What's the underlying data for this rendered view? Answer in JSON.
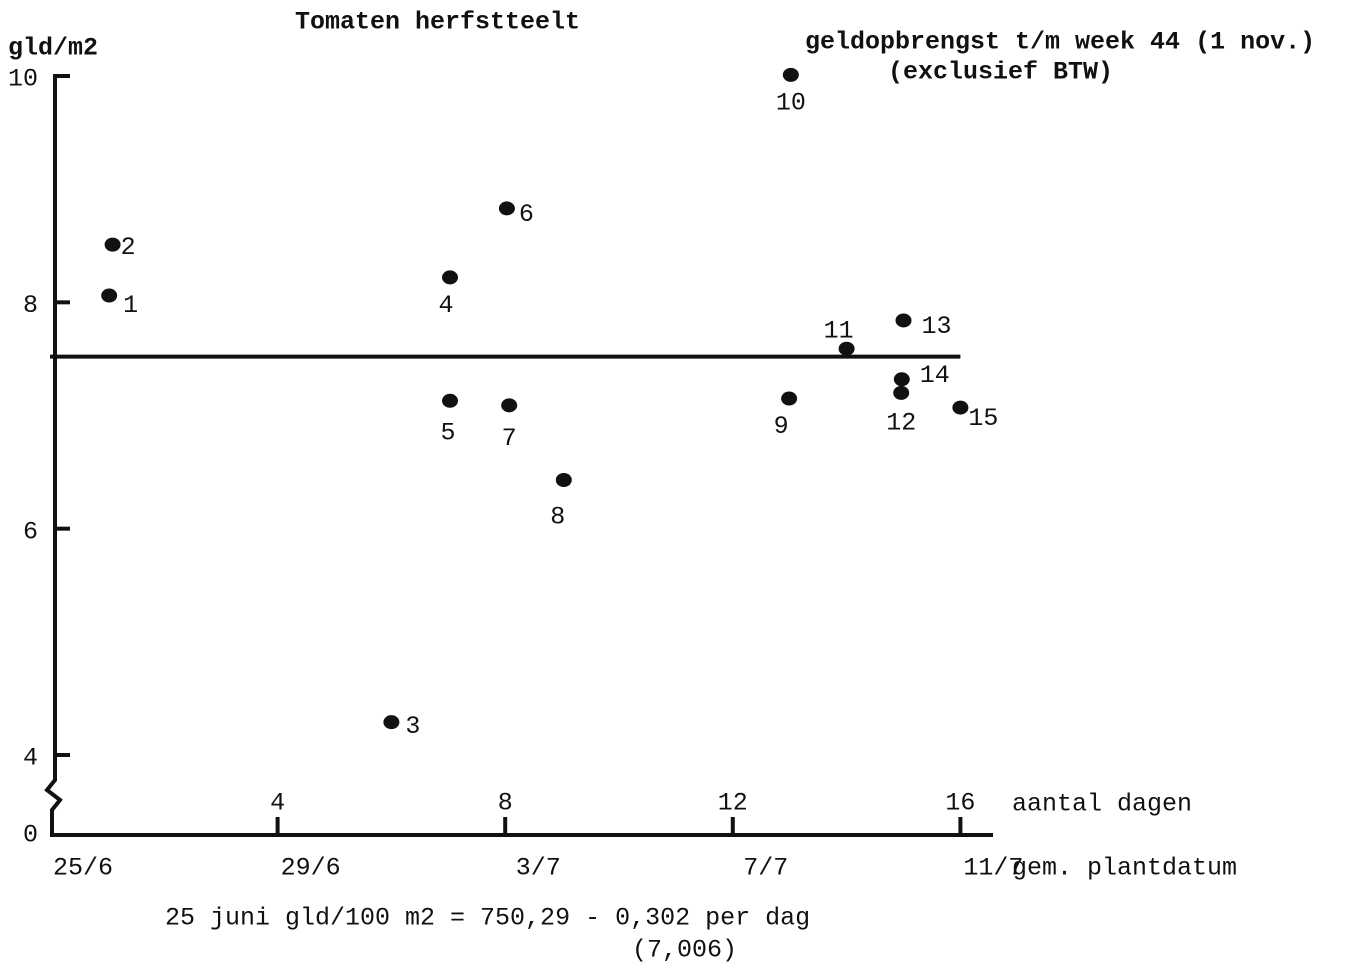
{
  "chart_data": {
    "type": "scatter",
    "title": "Tomaten  herfstteelt",
    "y_label": "gld/m2",
    "annotation": [
      "geldopbrengst t/m week 44 (1 nov.)",
      "(exclusief BTW)"
    ],
    "x_label": "aantal dagen",
    "x2_label": "gem. plantdatum",
    "footnote": [
      "25 juni gld/100 m2 = 750,29 - 0,302 per dag",
      "(7,006)"
    ],
    "xlim": [
      0,
      16.6
    ],
    "ylim": [
      4,
      10
    ],
    "xticks": [
      4,
      8,
      12,
      16
    ],
    "yticks": [
      4,
      6,
      8,
      10
    ],
    "y_origin_tick": 0,
    "date_ticks": [
      {
        "value": 0,
        "label": "25/6"
      },
      {
        "value": 4,
        "label": "29/6"
      },
      {
        "value": 8,
        "label": "3/7"
      },
      {
        "value": 12,
        "label": "7/7"
      },
      {
        "value": 16,
        "label": "11/7"
      }
    ],
    "reference_line": {
      "x": [
        0,
        16
      ],
      "y": [
        7.52,
        7.52
      ]
    },
    "series": [
      {
        "color": "#111111",
        "labels": [
          "1",
          "2",
          "3",
          "4",
          "5",
          "6",
          "7",
          "8",
          "9",
          "10",
          "11",
          "12",
          "13",
          "14",
          "15"
        ],
        "x": [
          1.04,
          1.1,
          6.0,
          7.03,
          7.03,
          8.03,
          8.07,
          9.03,
          12.99,
          13.02,
          14.0,
          14.96,
          15.0,
          14.97,
          16.0
        ],
        "values": [
          8.06,
          8.51,
          4.29,
          8.22,
          7.13,
          8.83,
          7.09,
          6.43,
          7.15,
          10.01,
          7.59,
          7.2,
          7.84,
          7.32,
          7.07
        ]
      }
    ]
  }
}
